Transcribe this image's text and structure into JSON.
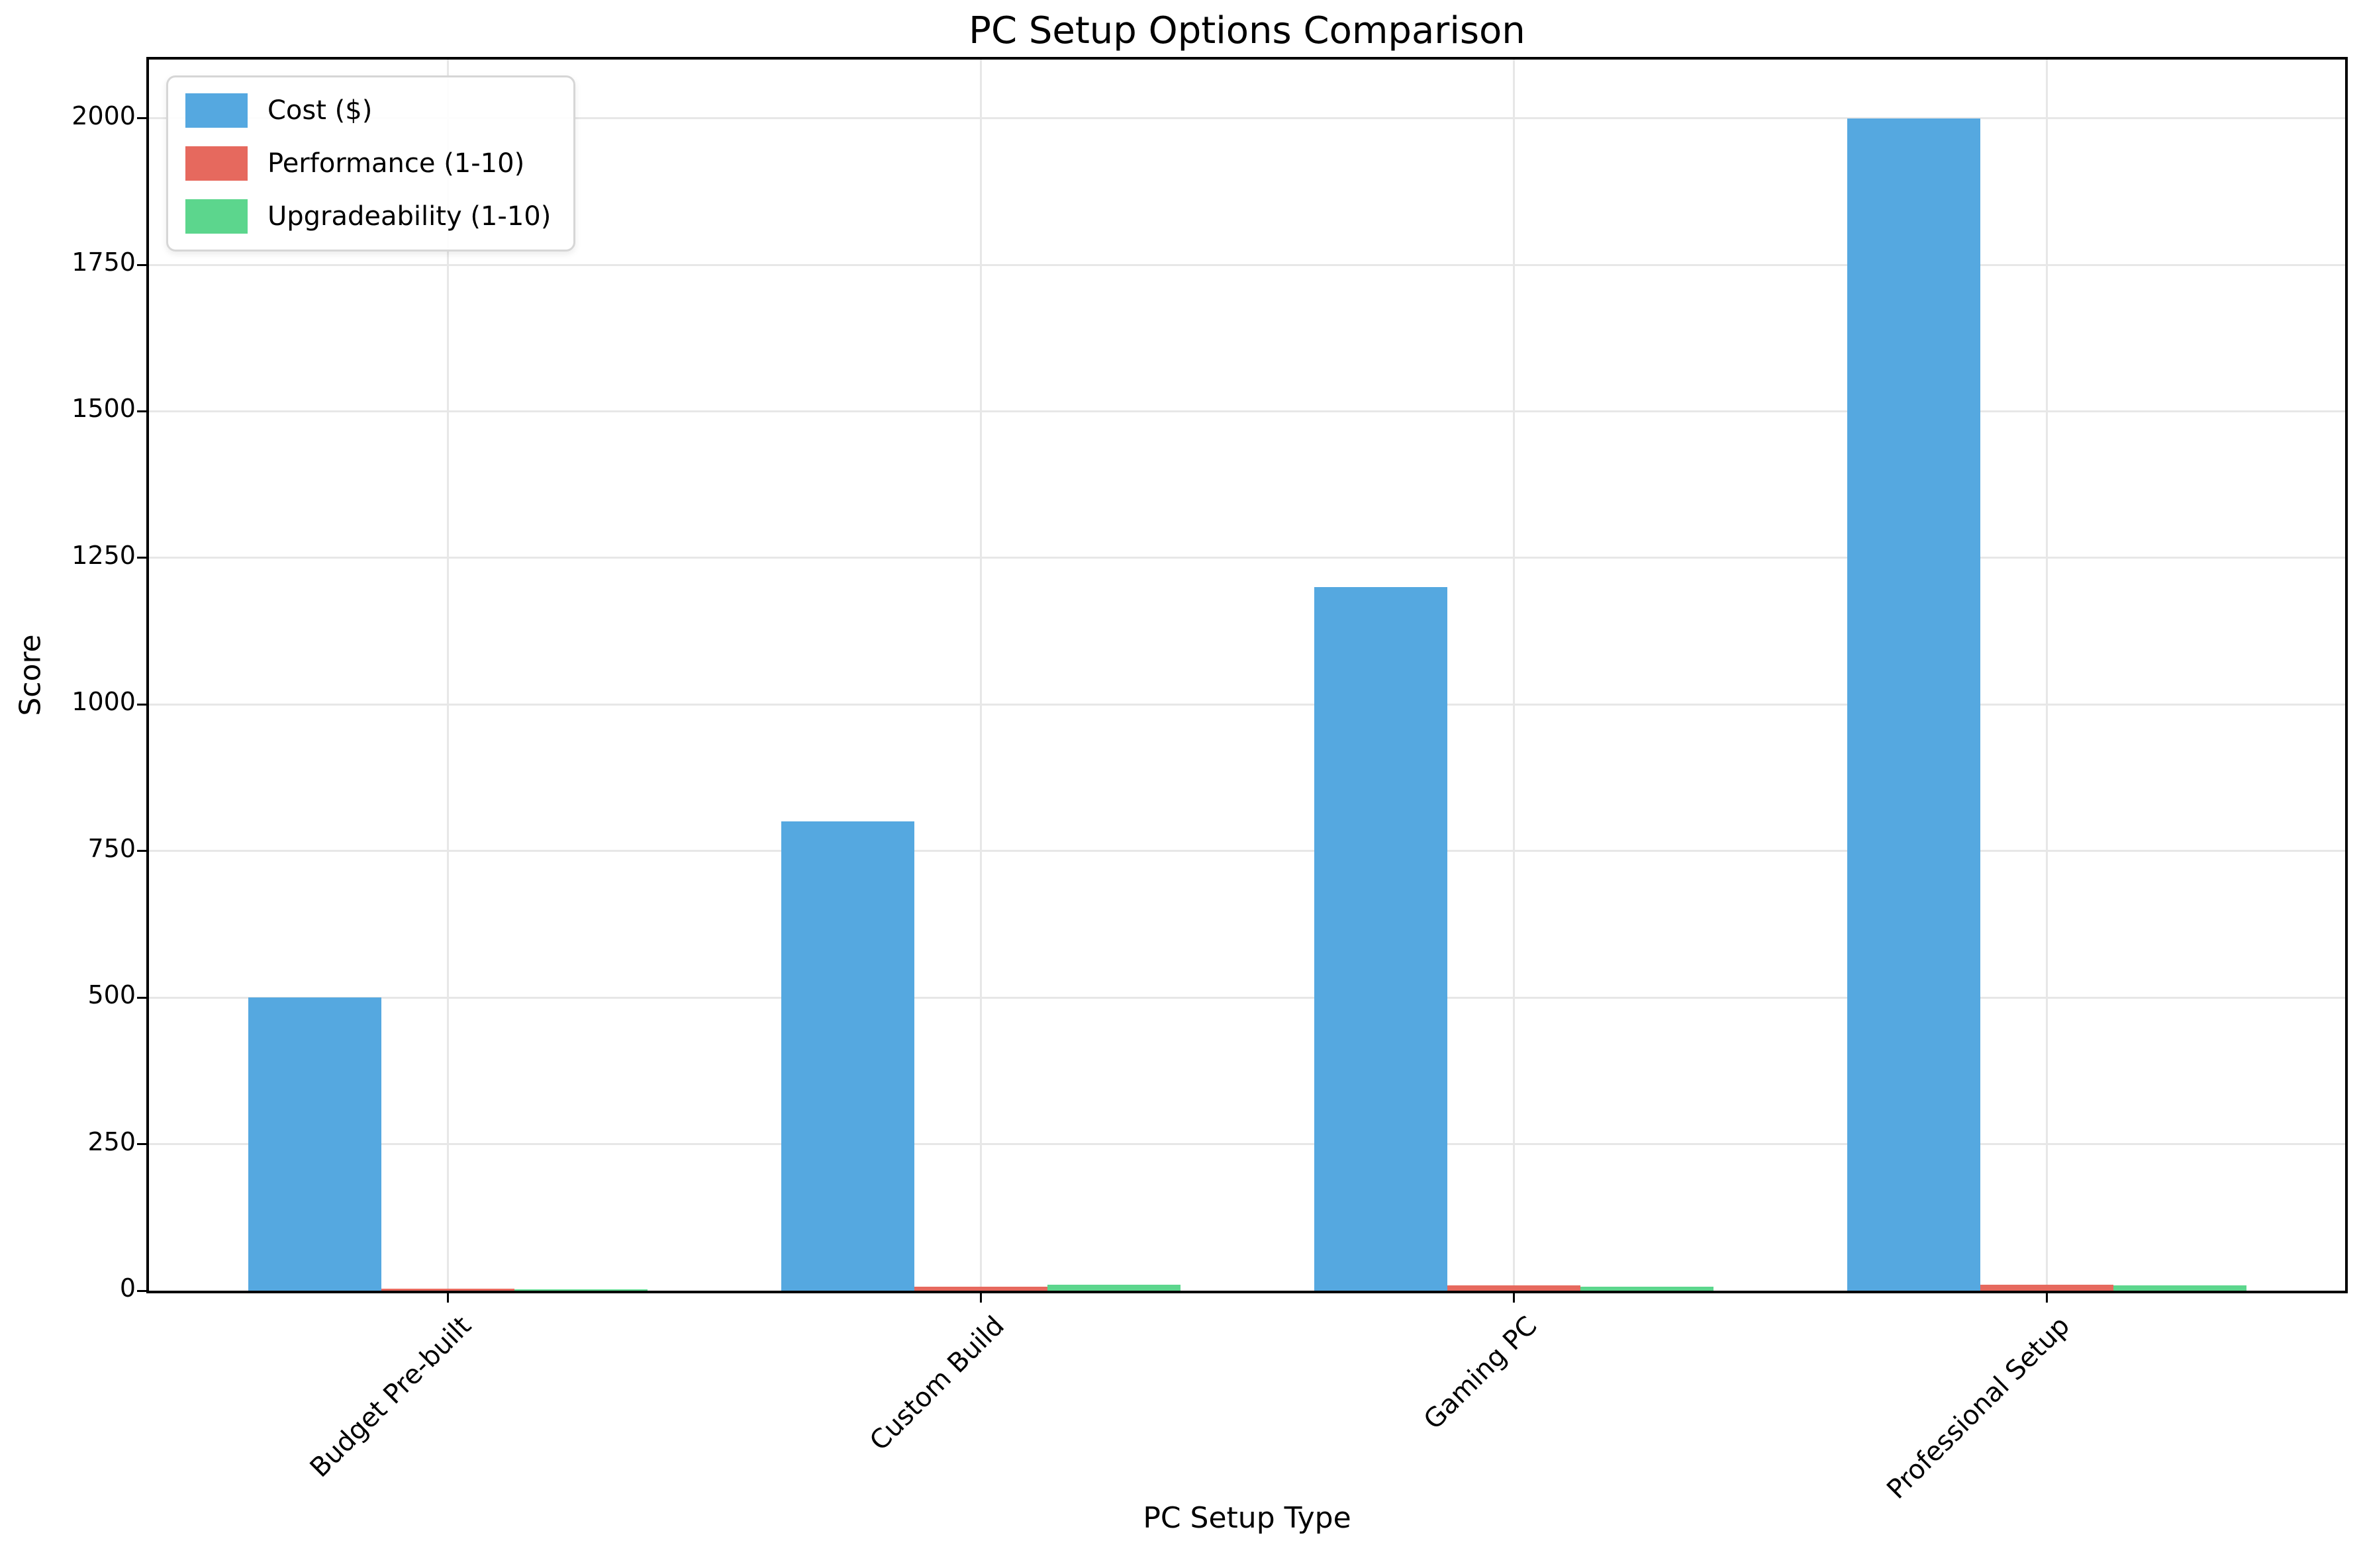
{
  "chart_data": {
    "type": "bar",
    "title": "PC Setup Options Comparison",
    "xlabel": "PC Setup Type",
    "ylabel": "Score",
    "categories": [
      "Budget Pre-built",
      "Custom Build",
      "Gaming PC",
      "Professional Setup"
    ],
    "series": [
      {
        "name": "Cost ($)",
        "color": "#55a8e0",
        "values": [
          500,
          800,
          1200,
          2000
        ]
      },
      {
        "name": "Performance (1-10)",
        "color": "#e6695e",
        "values": [
          3,
          7,
          9,
          10
        ]
      },
      {
        "name": "Upgradeability (1-10)",
        "color": "#5cd68d",
        "values": [
          2,
          10,
          7,
          9
        ]
      }
    ],
    "yticks": [
      0,
      250,
      500,
      750,
      1000,
      1250,
      1500,
      1750,
      2000
    ],
    "ylim": [
      0,
      2100
    ],
    "grid": true,
    "legend_position": "upper left"
  }
}
